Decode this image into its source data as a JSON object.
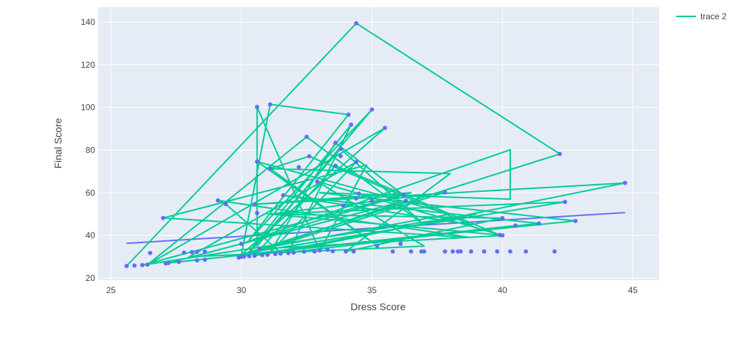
{
  "chart_data": {
    "type": "scatter",
    "title": "",
    "xlabel": "Dress Score",
    "ylabel": "Final Score",
    "xlim": [
      24.5,
      46
    ],
    "ylim": [
      19,
      147
    ],
    "xticks": [
      25,
      30,
      35,
      40,
      45
    ],
    "yticks": [
      20,
      40,
      60,
      80,
      100,
      120,
      140
    ],
    "grid": true,
    "legend_position": "top-right",
    "colors": {
      "plot_bg": "#e5ecf6",
      "grid": "#ffffff",
      "points": "#636efa",
      "fit_line": "#636efa",
      "trace2": "#00cc96"
    },
    "fit_line": {
      "x": [
        25.6,
        44.7
      ],
      "y": [
        36.3,
        50.7
      ]
    },
    "series": [
      {
        "name": "",
        "mode": "markers",
        "points": [
          [
            25.6,
            25.7
          ],
          [
            25.9,
            25.9
          ],
          [
            26.2,
            26.1
          ],
          [
            26.4,
            26.3
          ],
          [
            26.5,
            31.8
          ],
          [
            27.0,
            48.2
          ],
          [
            27.1,
            26.9
          ],
          [
            27.2,
            27.1
          ],
          [
            27.6,
            27.6
          ],
          [
            27.8,
            31.9
          ],
          [
            28.1,
            32.2
          ],
          [
            28.3,
            32.3
          ],
          [
            28.3,
            28.3
          ],
          [
            28.6,
            28.6
          ],
          [
            28.6,
            32.4
          ],
          [
            29.1,
            56.4
          ],
          [
            29.4,
            54.7
          ],
          [
            29.9,
            29.6
          ],
          [
            30.0,
            30.0
          ],
          [
            30.1,
            30.1
          ],
          [
            30.0,
            36.1
          ],
          [
            30.3,
            30.3
          ],
          [
            30.5,
            30.5
          ],
          [
            30.5,
            54.6
          ],
          [
            30.6,
            100.2
          ],
          [
            30.6,
            74.6
          ],
          [
            30.6,
            50.5
          ],
          [
            30.7,
            33.7
          ],
          [
            30.8,
            30.8
          ],
          [
            31.0,
            31.0
          ],
          [
            31.1,
            101.4
          ],
          [
            31.1,
            71.3
          ],
          [
            31.3,
            31.3
          ],
          [
            31.5,
            31.5
          ],
          [
            31.6,
            58.8
          ],
          [
            31.8,
            31.8
          ],
          [
            32.0,
            32.0
          ],
          [
            32.2,
            72.0
          ],
          [
            32.4,
            32.4
          ],
          [
            32.5,
            86.2
          ],
          [
            32.6,
            77.1
          ],
          [
            32.8,
            32.5
          ],
          [
            32.9,
            65.3
          ],
          [
            33.0,
            33.0
          ],
          [
            33.3,
            33.3
          ],
          [
            33.5,
            32.6
          ],
          [
            33.6,
            83.4
          ],
          [
            33.6,
            72.7
          ],
          [
            33.8,
            80.6
          ],
          [
            33.8,
            77.2
          ],
          [
            33.9,
            54.0
          ],
          [
            34.0,
            32.5
          ],
          [
            34.1,
            96.6
          ],
          [
            34.2,
            91.9
          ],
          [
            34.3,
            32.5
          ],
          [
            34.4,
            139.4
          ],
          [
            34.4,
            74.4
          ],
          [
            34.5,
            59.6
          ],
          [
            34.4,
            57.3
          ],
          [
            35.0,
            99.0
          ],
          [
            35.0,
            56.2
          ],
          [
            35.2,
            35.2
          ],
          [
            35.5,
            90.4
          ],
          [
            35.8,
            32.5
          ],
          [
            36.1,
            36.1
          ],
          [
            36.2,
            59.0
          ],
          [
            36.3,
            56.3
          ],
          [
            36.5,
            32.5
          ],
          [
            36.9,
            32.5
          ],
          [
            37.0,
            32.5
          ],
          [
            37.8,
            60.2
          ],
          [
            37.8,
            32.5
          ],
          [
            38.1,
            32.5
          ],
          [
            38.3,
            32.5
          ],
          [
            38.4,
            32.5
          ],
          [
            38.8,
            32.5
          ],
          [
            39.3,
            32.5
          ],
          [
            39.8,
            32.5
          ],
          [
            39.9,
            40.2
          ],
          [
            40.0,
            48.1
          ],
          [
            40.0,
            40.0
          ],
          [
            40.3,
            32.5
          ],
          [
            40.5,
            44.6
          ],
          [
            40.9,
            32.5
          ],
          [
            41.4,
            45.6
          ],
          [
            42.0,
            32.5
          ],
          [
            42.2,
            78.2
          ],
          [
            42.4,
            55.7
          ],
          [
            42.8,
            46.8
          ],
          [
            44.7,
            64.6
          ]
        ]
      },
      {
        "name": "trace 2",
        "mode": "lines",
        "points": [
          [
            25.6,
            25.7
          ],
          [
            34.4,
            139.4
          ],
          [
            42.2,
            78.2
          ],
          [
            30.0,
            31.0
          ],
          [
            31.1,
            101.4
          ],
          [
            34.1,
            96.6
          ],
          [
            30.3,
            38.0
          ],
          [
            35.0,
            99.0
          ],
          [
            30.6,
            35.0
          ],
          [
            30.6,
            100.2
          ],
          [
            33.0,
            32.8
          ],
          [
            34.8,
            73.0
          ],
          [
            27.0,
            48.2
          ],
          [
            38.8,
            39.0
          ],
          [
            29.1,
            56.4
          ],
          [
            29.4,
            54.7
          ],
          [
            31.5,
            32.0
          ],
          [
            44.7,
            64.6
          ],
          [
            30.5,
            54.6
          ],
          [
            36.5,
            60.0
          ],
          [
            30.0,
            36.1
          ],
          [
            40.3,
            80.2
          ],
          [
            40.3,
            57.0
          ],
          [
            33.0,
            60.0
          ],
          [
            42.8,
            46.8
          ],
          [
            30.0,
            31.0
          ],
          [
            35.5,
            90.4
          ],
          [
            26.4,
            26.3
          ],
          [
            32.5,
            86.2
          ],
          [
            37.0,
            45.0
          ],
          [
            33.8,
            80.6
          ],
          [
            30.3,
            32.0
          ],
          [
            42.4,
            55.7
          ],
          [
            31.0,
            50.0
          ],
          [
            40.0,
            48.1
          ],
          [
            34.0,
            32.5
          ],
          [
            38.0,
            69.0
          ],
          [
            31.1,
            71.3
          ],
          [
            32.6,
            77.1
          ],
          [
            38.8,
            45.0
          ],
          [
            31.6,
            58.8
          ],
          [
            41.4,
            45.6
          ],
          [
            30.2,
            31.0
          ],
          [
            34.2,
            91.9
          ],
          [
            31.8,
            32.0
          ],
          [
            40.5,
            44.6
          ],
          [
            27.2,
            27.1
          ],
          [
            36.3,
            56.3
          ],
          [
            29.9,
            29.6
          ],
          [
            37.8,
            60.2
          ],
          [
            31.1,
            50.0
          ],
          [
            39.9,
            40.2
          ],
          [
            33.6,
            72.7
          ],
          [
            30.5,
            30.5
          ],
          [
            39.0,
            50.0
          ],
          [
            26.2,
            26.1
          ],
          [
            36.2,
            59.0
          ],
          [
            33.6,
            83.4
          ],
          [
            31.1,
            32.0
          ],
          [
            34.4,
            74.4
          ],
          [
            28.0,
            30.0
          ],
          [
            37.0,
            35.0
          ],
          [
            32.9,
            65.3
          ],
          [
            40.0,
            40.0
          ],
          [
            30.7,
            33.7
          ],
          [
            38.0,
            50.0
          ],
          [
            30.6,
            74.6
          ],
          [
            35.2,
            35.2
          ],
          [
            31.1,
            71.3
          ]
        ]
      }
    ]
  }
}
